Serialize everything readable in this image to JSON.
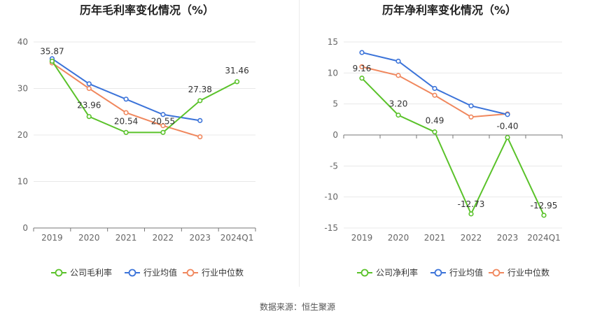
{
  "footer": {
    "source_label": "数据来源：恒生聚源"
  },
  "colors": {
    "company": "#5ac22a",
    "industry_avg": "#3b73d9",
    "industry_median": "#f0875d",
    "grid": "#e8e8e8",
    "axis": "#666666"
  },
  "chart_data": [
    {
      "type": "line",
      "title": "历年毛利率变化情况（%）",
      "categories": [
        "2019",
        "2020",
        "2021",
        "2022",
        "2023",
        "2024Q1"
      ],
      "ylim": [
        0,
        40
      ],
      "yticks": [
        0,
        10,
        20,
        30,
        40
      ],
      "grid": true,
      "legend_position": "bottom",
      "series": [
        {
          "name": "公司毛利率",
          "color": "#5ac22a",
          "values": [
            35.87,
            23.96,
            20.54,
            20.55,
            27.38,
            31.46
          ],
          "labels": [
            "35.87",
            "23.96",
            "20.54",
            "20.55",
            "27.38",
            "31.46"
          ]
        },
        {
          "name": "行业均值",
          "color": "#3b73d9",
          "values": [
            36.4,
            31.0,
            27.7,
            24.4,
            23.1,
            null
          ]
        },
        {
          "name": "行业中位数",
          "color": "#f0875d",
          "values": [
            35.5,
            30.0,
            24.8,
            22.0,
            19.6,
            null
          ]
        }
      ]
    },
    {
      "type": "line",
      "title": "历年净利率变化情况（%）",
      "categories": [
        "2019",
        "2020",
        "2021",
        "2022",
        "2023",
        "2024Q1"
      ],
      "ylim": [
        -15,
        15
      ],
      "yticks": [
        -15,
        -10,
        -5,
        0,
        5,
        10,
        15
      ],
      "grid": true,
      "legend_position": "bottom",
      "series": [
        {
          "name": "公司净利率",
          "color": "#5ac22a",
          "values": [
            9.16,
            3.2,
            0.49,
            -12.73,
            -0.4,
            -12.95
          ],
          "labels": [
            "9.16",
            "3.20",
            "0.49",
            "-12.73",
            "-0.40",
            "-12.95"
          ]
        },
        {
          "name": "行业均值",
          "color": "#3b73d9",
          "values": [
            13.3,
            11.9,
            7.5,
            4.7,
            3.3,
            null
          ]
        },
        {
          "name": "行业中位数",
          "color": "#f0875d",
          "values": [
            11.0,
            9.6,
            6.4,
            2.9,
            3.4,
            null
          ]
        }
      ]
    }
  ]
}
